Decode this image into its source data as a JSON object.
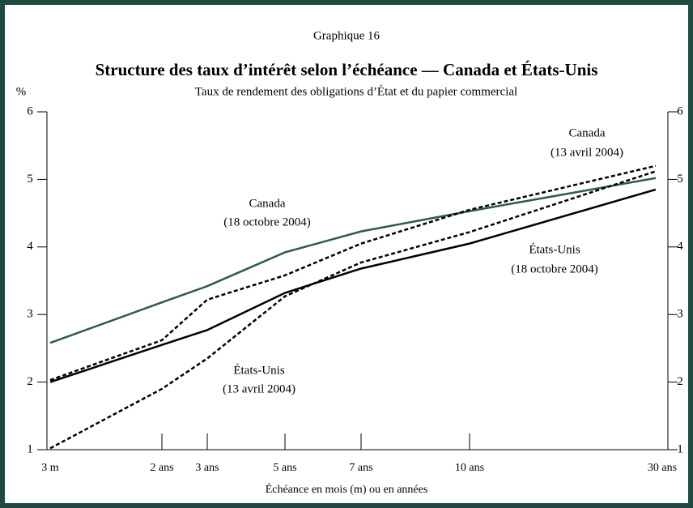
{
  "chart_data": {
    "type": "line",
    "label": "Graphique 16",
    "title": "Structure des taux d’intérêt selon l’échéance — Canada et États-Unis",
    "subtitle": "Taux de rendement des obligations d’État et du papier commercial",
    "y_unit": "%",
    "x_label": "Échéance en mois (m) ou en années",
    "categories": [
      "3 m",
      "2 ans",
      "3 ans",
      "5 ans",
      "7 ans",
      "10 ans",
      "30 ans"
    ],
    "ylim": [
      1,
      6
    ],
    "yticks": [
      1,
      2,
      3,
      4,
      5,
      6
    ],
    "y2lim": [
      1,
      6
    ],
    "y2ticks": [
      1,
      2,
      3,
      4,
      5,
      6
    ],
    "series": [
      {
        "name": "Canada",
        "date": "(18 octobre 2004)",
        "color": "#2b5b54",
        "dash": false,
        "values": [
          2.58,
          3.18,
          3.42,
          3.92,
          4.23,
          4.53,
          5.02
        ]
      },
      {
        "name": "États-Unis",
        "date": "(18 octobre 2004)",
        "color": "#000000",
        "dash": false,
        "values": [
          2.0,
          2.55,
          2.77,
          3.32,
          3.68,
          4.05,
          4.85
        ]
      },
      {
        "name": "Canada",
        "date": "(13 avril 2004)",
        "color": "#000000",
        "dash": true,
        "values": [
          2.03,
          2.62,
          3.22,
          3.58,
          4.05,
          4.55,
          5.2
        ]
      },
      {
        "name": "États-Unis",
        "date": "(13 avril 2004)",
        "color": "#000000",
        "dash": true,
        "values": [
          1.02,
          1.9,
          2.35,
          3.27,
          3.77,
          4.22,
          5.12
        ]
      }
    ]
  }
}
